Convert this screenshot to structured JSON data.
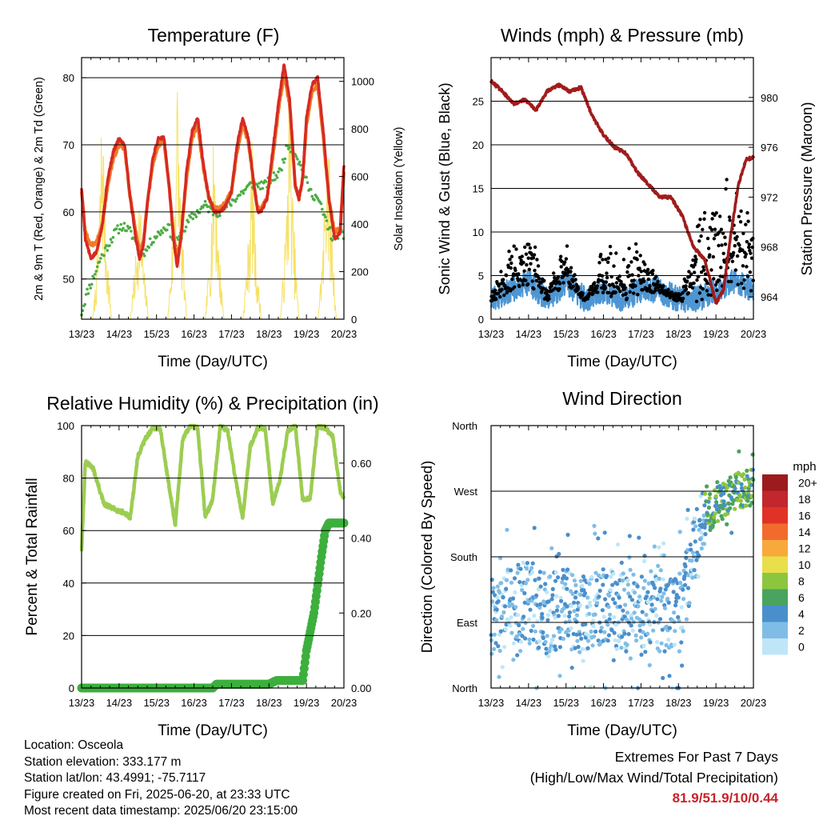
{
  "panels": {
    "temperature": {
      "title": "Temperature (F)",
      "ylabel_left": "2m & 9m T (Red, Orange) & 2m Td (Green)",
      "ylabel_right": "Solar Insolation (Yellow)",
      "xlabel": "Time (Day/UTC)"
    },
    "winds": {
      "title": "Winds (mph) & Pressure (mb)",
      "ylabel_left": "Sonic Wind & Gust (Blue, Black)",
      "ylabel_right": "Station Pressure (Maroon)",
      "xlabel": "Time (Day/UTC)"
    },
    "humidity": {
      "title": "Relative Humidity (%) & Precipitation (in)",
      "ylabel_left": "Percent & Total Rainfall",
      "xlabel": "Time (Day/UTC)"
    },
    "direction": {
      "title": "Wind Direction",
      "ylabel_left": "Direction (Colored By Speed)",
      "xlabel": "Time (Day/UTC)",
      "colorbar_title": "mph"
    }
  },
  "footer": {
    "location": "Location: Osceola",
    "elevation": "Station elevation: 333.177 m",
    "latlon": "Station lat/lon: 43.4991; -75.7117",
    "created": "Figure created on Fri, 2025-06-20, at 23:33 UTC",
    "recent": "Most recent data timestamp: 2025/06/20 23:15:00",
    "extremes_title": "Extremes For Past 7 Days",
    "extremes_sub": "(High/Low/Max Wind/Total Precipitation)",
    "extremes_values": "81.9/51.9/10/0.44"
  },
  "colors": {
    "temp2m": "#d62a22",
    "temp9m": "#f07a2a",
    "dewpoint": "#4cad43",
    "solar": "#f5dc4a",
    "wind": "#4d96d3",
    "gust": "#000000",
    "pressure": "#a01c1c",
    "rh": "#9ccd52",
    "precip": "#3daf3d"
  },
  "chart_data": [
    {
      "type": "line",
      "title": "Temperature (F)",
      "xlabel": "Time (Day/UTC)",
      "ylabel": "2m & 9m T (Red, Orange) & 2m Td (Green)",
      "y2label": "Solar Insolation (Yellow)",
      "x_ticks": [
        "13/23",
        "14/23",
        "15/23",
        "16/23",
        "17/23",
        "18/23",
        "19/23",
        "20/23"
      ],
      "xlim": [
        0,
        7
      ],
      "ylim": [
        44,
        83
      ],
      "y_ticks": [
        50,
        60,
        70,
        80
      ],
      "y2lim": [
        0,
        1100
      ],
      "y2_ticks": [
        0,
        200,
        400,
        600,
        800,
        1000
      ],
      "grid": true,
      "series": [
        {
          "name": "2m T",
          "color": "#d62a22",
          "axis": "left",
          "x": [
            0.0,
            0.1,
            0.25,
            0.4,
            0.55,
            0.7,
            0.85,
            1.0,
            1.15,
            1.3,
            1.45,
            1.55,
            1.65,
            1.75,
            1.9,
            2.05,
            2.2,
            2.35,
            2.45,
            2.55,
            2.65,
            2.8,
            2.95,
            3.1,
            3.25,
            3.4,
            3.55,
            3.7,
            3.85,
            4.0,
            4.15,
            4.3,
            4.45,
            4.6,
            4.7,
            4.8,
            4.95,
            5.1,
            5.25,
            5.4,
            5.55,
            5.7,
            5.8,
            5.9,
            6.0,
            6.15,
            6.3,
            6.45,
            6.6,
            6.75,
            6.9,
            7.0
          ],
          "y": [
            63.5,
            56,
            53,
            54,
            58,
            65,
            69,
            71,
            70,
            62,
            56,
            53,
            55,
            61,
            68,
            71,
            71,
            63,
            56,
            52,
            56,
            66,
            72,
            74,
            67,
            62,
            60,
            60,
            61,
            63,
            70,
            74,
            71,
            64,
            60,
            60,
            62,
            69,
            76,
            81.9,
            77,
            64,
            62,
            65,
            74,
            79,
            80,
            72,
            62,
            56,
            57,
            67
          ]
        },
        {
          "name": "9m T",
          "color": "#f07a2a",
          "axis": "left",
          "x": [
            0.0,
            0.1,
            0.25,
            0.4,
            0.55,
            0.7,
            0.85,
            1.0,
            1.15,
            1.3,
            1.45,
            1.55,
            1.65,
            1.75,
            1.9,
            2.05,
            2.2,
            2.35,
            2.45,
            2.55,
            2.65,
            2.8,
            2.95,
            3.1,
            3.25,
            3.4,
            3.55,
            3.7,
            3.85,
            4.0,
            4.15,
            4.3,
            4.45,
            4.6,
            4.7,
            4.8,
            4.95,
            5.1,
            5.25,
            5.4,
            5.55,
            5.7,
            5.8,
            5.9,
            6.0,
            6.15,
            6.3,
            6.45,
            6.6,
            6.75,
            6.9,
            7.0
          ],
          "y": [
            63,
            57,
            55,
            55.5,
            58,
            64,
            68,
            70,
            69.5,
            62,
            57,
            54,
            55.5,
            61,
            67,
            70,
            70.5,
            63,
            57,
            53,
            56,
            65,
            71,
            73,
            66.5,
            62,
            60.5,
            60.5,
            61.5,
            63,
            69,
            73,
            70.5,
            64,
            60.5,
            60.5,
            62,
            68,
            75,
            80.5,
            76,
            64,
            62,
            65,
            73,
            78,
            79,
            71,
            62,
            57,
            57.5,
            66
          ]
        },
        {
          "name": "2m Td",
          "color": "#4cad43",
          "axis": "left",
          "x": [
            0.0,
            0.15,
            0.3,
            0.5,
            0.7,
            0.9,
            1.1,
            1.3,
            1.5,
            1.7,
            1.9,
            2.1,
            2.3,
            2.5,
            2.7,
            2.9,
            3.1,
            3.3,
            3.5,
            3.7,
            3.9,
            4.1,
            4.3,
            4.5,
            4.7,
            4.9,
            5.1,
            5.3,
            5.5,
            5.7,
            5.9,
            6.1,
            6.3,
            6.5,
            6.7,
            6.9,
            7.0
          ],
          "y": [
            45,
            48,
            50,
            53,
            55,
            57,
            58,
            57,
            55,
            54,
            56,
            57,
            58,
            55,
            57,
            59,
            60,
            61,
            60,
            60,
            61,
            62,
            63,
            64,
            64,
            64,
            65,
            66,
            70,
            69,
            66,
            63,
            62,
            59,
            56,
            57,
            56
          ]
        },
        {
          "name": "Solar Insolation",
          "color": "#f5dc4a",
          "axis": "right",
          "x": [
            0.3,
            0.45,
            0.55,
            0.65,
            0.8,
            1.3,
            1.45,
            1.55,
            1.65,
            1.8,
            2.3,
            2.45,
            2.55,
            2.65,
            2.8,
            3.3,
            3.45,
            3.55,
            3.65,
            3.8,
            4.3,
            4.45,
            4.55,
            4.65,
            4.8,
            5.3,
            5.45,
            5.55,
            5.65,
            5.8,
            6.3,
            6.45,
            6.55,
            6.65,
            6.8
          ],
          "y": [
            0,
            350,
            1000,
            400,
            0,
            0,
            300,
            600,
            250,
            0,
            0,
            450,
            1100,
            500,
            0,
            0,
            400,
            900,
            350,
            0,
            0,
            350,
            800,
            300,
            0,
            0,
            400,
            1050,
            450,
            0,
            0,
            350,
            1000,
            500,
            0
          ]
        }
      ]
    },
    {
      "type": "scatter",
      "title": "Winds (mph) & Pressure (mb)",
      "xlabel": "Time (Day/UTC)",
      "ylabel": "Sonic Wind & Gust (Blue, Black)",
      "y2label": "Station Pressure (Maroon)",
      "x_ticks": [
        "13/23",
        "14/23",
        "15/23",
        "16/23",
        "17/23",
        "18/23",
        "19/23",
        "20/23"
      ],
      "xlim": [
        0,
        7
      ],
      "ylim": [
        0,
        30
      ],
      "y_ticks": [
        0,
        5,
        10,
        15,
        20,
        25
      ],
      "y2lim": [
        962.2,
        983.2
      ],
      "y2_ticks": [
        964,
        968,
        972,
        976,
        980
      ],
      "grid": true,
      "series": [
        {
          "name": "Sonic Wind",
          "color": "#4d96d3",
          "axis": "left",
          "x": [
            0.0,
            0.5,
            1.0,
            1.5,
            2.0,
            2.5,
            3.0,
            3.5,
            4.0,
            4.5,
            5.0,
            5.5,
            6.0,
            6.5,
            7.0
          ],
          "y": [
            2,
            3,
            4,
            2,
            4,
            2,
            3,
            2,
            3,
            3,
            2,
            2,
            3,
            4,
            3
          ]
        },
        {
          "name": "Gust",
          "color": "#000000",
          "axis": "left",
          "x": [
            0.0,
            0.5,
            1.0,
            1.5,
            2.0,
            2.5,
            3.0,
            3.5,
            4.0,
            4.5,
            5.0,
            5.5,
            6.0,
            6.5,
            7.0
          ],
          "y": [
            3,
            9,
            11,
            4,
            9,
            2,
            9,
            8,
            10,
            5,
            1,
            14,
            17,
            18,
            13
          ]
        },
        {
          "name": "Station Pressure",
          "color": "#a01c1c",
          "axis": "right",
          "x": [
            0.0,
            0.3,
            0.6,
            0.9,
            1.2,
            1.5,
            1.8,
            2.1,
            2.4,
            2.7,
            3.0,
            3.3,
            3.6,
            3.9,
            4.2,
            4.5,
            4.8,
            5.1,
            5.4,
            5.7,
            6.0,
            6.2,
            6.4,
            6.6,
            6.8,
            7.0
          ],
          "y": [
            981.3,
            980.5,
            979.5,
            979.8,
            979,
            980.5,
            981,
            980.5,
            980.8,
            978.5,
            977,
            976,
            975.5,
            974,
            973,
            972,
            972,
            970.5,
            968,
            967,
            963.5,
            964.5,
            969,
            973,
            975,
            975.2
          ]
        }
      ]
    },
    {
      "type": "line",
      "title": "Relative Humidity (%) & Precipitation (in)",
      "xlabel": "Time (Day/UTC)",
      "ylabel": "Percent & Total Rainfall",
      "x_ticks": [
        "13/23",
        "14/23",
        "15/23",
        "16/23",
        "17/23",
        "18/23",
        "19/23",
        "20/23"
      ],
      "xlim": [
        0,
        7
      ],
      "ylim": [
        0,
        100
      ],
      "y_ticks": [
        0,
        20,
        40,
        60,
        80,
        100
      ],
      "y2lim": [
        0,
        0.7
      ],
      "y2_ticks": [
        "0.00",
        "0.20",
        "0.40",
        "0.60"
      ],
      "grid": true,
      "series": [
        {
          "name": "Relative Humidity",
          "color": "#9ccd52",
          "axis": "left",
          "x": [
            0.0,
            0.1,
            0.3,
            0.6,
            0.9,
            1.1,
            1.3,
            1.5,
            1.7,
            1.9,
            2.1,
            2.3,
            2.5,
            2.7,
            2.9,
            3.1,
            3.3,
            3.5,
            3.7,
            3.9,
            4.1,
            4.3,
            4.5,
            4.7,
            4.9,
            5.1,
            5.3,
            5.5,
            5.7,
            5.9,
            6.1,
            6.3,
            6.5,
            6.7,
            6.9,
            7.0
          ],
          "y": [
            53,
            86,
            84,
            70,
            68,
            67,
            65,
            88,
            95,
            99,
            99,
            80,
            62,
            95,
            100,
            99,
            65,
            72,
            100,
            98,
            80,
            65,
            92,
            99,
            99,
            70,
            80,
            98,
            100,
            72,
            72,
            100,
            99,
            96,
            75,
            72
          ]
        },
        {
          "name": "Total Rainfall",
          "color": "#3daf3d",
          "axis": "right",
          "x": [
            0.0,
            3.5,
            3.6,
            5.0,
            5.2,
            5.9,
            6.0,
            6.2,
            6.4,
            6.5,
            6.6,
            7.0
          ],
          "y": [
            0.0,
            0.0,
            0.01,
            0.01,
            0.02,
            0.02,
            0.1,
            0.2,
            0.35,
            0.42,
            0.44,
            0.44
          ]
        }
      ]
    },
    {
      "type": "scatter",
      "title": "Wind Direction",
      "xlabel": "Time (Day/UTC)",
      "ylabel": "Direction (Colored By Speed)",
      "x_ticks": [
        "13/23",
        "14/23",
        "15/23",
        "16/23",
        "17/23",
        "18/23",
        "19/23",
        "20/23"
      ],
      "xlim": [
        0,
        7
      ],
      "y_ticks": [
        "North",
        "East",
        "South",
        "West",
        "North"
      ],
      "ylim": [
        0,
        360
      ],
      "grid": true,
      "colorbar": {
        "title": "mph",
        "labels": [
          "0",
          "2",
          "4",
          "6",
          "8",
          "10",
          "12",
          "14",
          "16",
          "18",
          "20+"
        ],
        "colors": [
          "#bfe6f7",
          "#80bde6",
          "#4a8fcc",
          "#4aa35e",
          "#8cc63f",
          "#e8df4a",
          "#f7a93c",
          "#f26b2d",
          "#e03325",
          "#c1272d",
          "#9b1b1e"
        ]
      },
      "series": [
        {
          "name": "Direction",
          "x": [
            0.0,
            0.5,
            1.0,
            1.5,
            2.0,
            2.5,
            3.0,
            3.5,
            4.0,
            4.5,
            5.0,
            5.5,
            5.8,
            6.0,
            6.5,
            7.0
          ],
          "y": [
            100,
            110,
            120,
            100,
            110,
            100,
            110,
            105,
            100,
            100,
            100,
            200,
            240,
            250,
            270,
            275
          ]
        }
      ]
    }
  ]
}
